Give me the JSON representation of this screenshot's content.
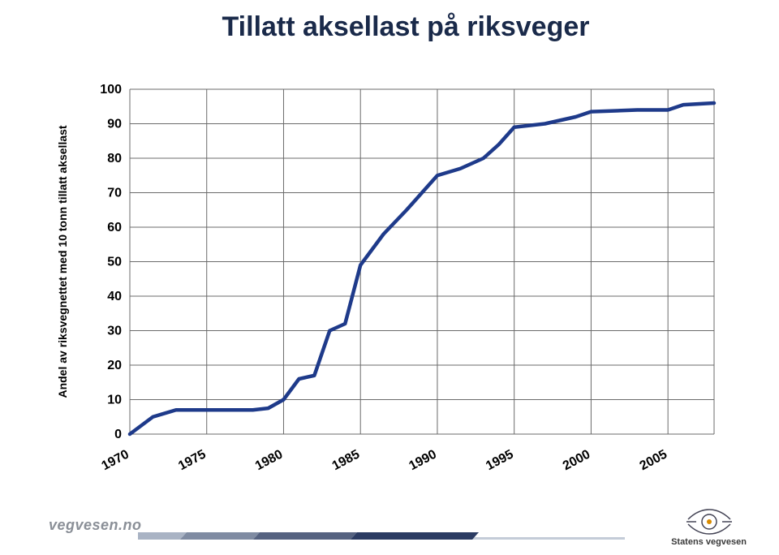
{
  "title": "Tillatt aksellast på riksveger",
  "footer": {
    "site": "vegvesen.no",
    "org": "Statens vegvesen"
  },
  "chart": {
    "type": "line",
    "ylabel": "Andel av riksvegnettet med 10 tonn tillatt aksellast",
    "ylabel_fontsize": 14,
    "ylabel_color": "#000000",
    "title_fontsize": 34,
    "title_color": "#1a2a4a",
    "xtick_labels": [
      "1970",
      "1975",
      "1980",
      "1985",
      "1990",
      "1995",
      "2000",
      "2005"
    ],
    "xtick_values": [
      1970,
      1975,
      1980,
      1985,
      1990,
      1995,
      2000,
      2005
    ],
    "xtick_fontsize": 16,
    "ytick_labels": [
      "0",
      "10",
      "20",
      "30",
      "40",
      "50",
      "60",
      "70",
      "80",
      "90",
      "100"
    ],
    "ytick_values": [
      0,
      10,
      20,
      30,
      40,
      50,
      60,
      70,
      80,
      90,
      100
    ],
    "ytick_fontsize": 16,
    "ylim": [
      0,
      100
    ],
    "xlim": [
      1970,
      2008
    ],
    "grid_color": "#6b6b6b",
    "grid_width": 1,
    "line_color": "#1e3a8a",
    "line_width": 4.5,
    "background_color": "#ffffff",
    "series": [
      {
        "x": 1970.0,
        "y": 0
      },
      {
        "x": 1971.5,
        "y": 5
      },
      {
        "x": 1973.0,
        "y": 7
      },
      {
        "x": 1975.5,
        "y": 7
      },
      {
        "x": 1978.0,
        "y": 7
      },
      {
        "x": 1979.0,
        "y": 7.5
      },
      {
        "x": 1980.0,
        "y": 10
      },
      {
        "x": 1981.0,
        "y": 16
      },
      {
        "x": 1982.0,
        "y": 17
      },
      {
        "x": 1983.0,
        "y": 30
      },
      {
        "x": 1984.0,
        "y": 32
      },
      {
        "x": 1985.0,
        "y": 49
      },
      {
        "x": 1986.5,
        "y": 58
      },
      {
        "x": 1988.0,
        "y": 65
      },
      {
        "x": 1989.0,
        "y": 70
      },
      {
        "x": 1990.0,
        "y": 75
      },
      {
        "x": 1991.5,
        "y": 77
      },
      {
        "x": 1993.0,
        "y": 80
      },
      {
        "x": 1994.0,
        "y": 84
      },
      {
        "x": 1995.0,
        "y": 89
      },
      {
        "x": 1997.0,
        "y": 90
      },
      {
        "x": 1999.0,
        "y": 92
      },
      {
        "x": 2000.0,
        "y": 93.5
      },
      {
        "x": 2003.0,
        "y": 94
      },
      {
        "x": 2005.0,
        "y": 94
      },
      {
        "x": 2006.0,
        "y": 95.5
      },
      {
        "x": 2008.0,
        "y": 96
      }
    ]
  },
  "footer_accent_colors": [
    "#a9b3c4",
    "#7f8ba2",
    "#556280",
    "#2b3b62"
  ]
}
